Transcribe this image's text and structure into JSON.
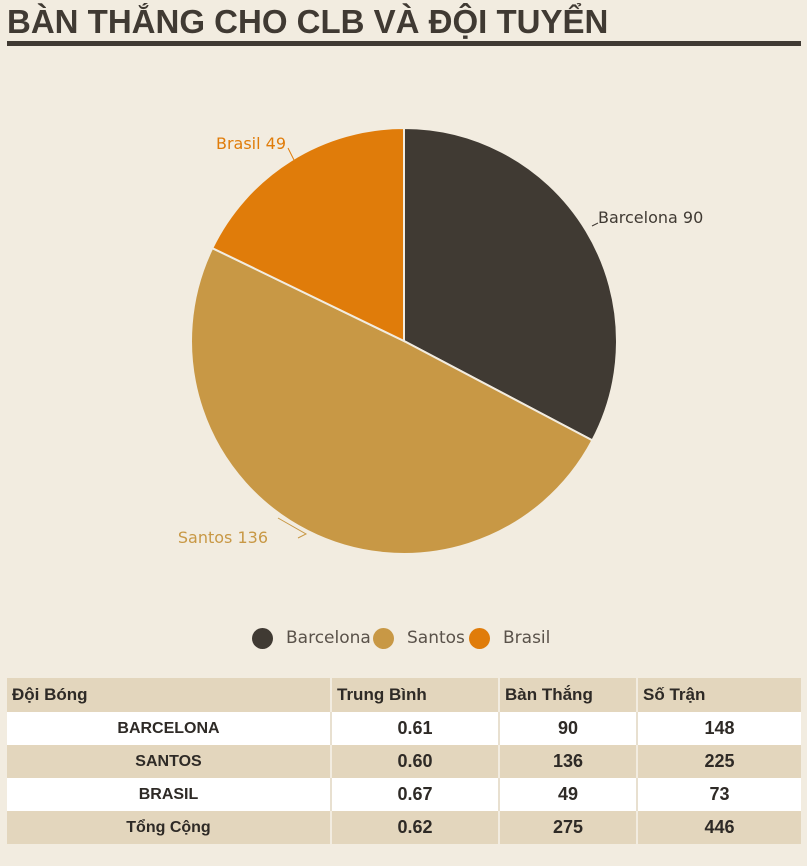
{
  "title": "BÀN THẮNG CHO CLB VÀ ĐỘI TUYỂN",
  "chart_data": {
    "type": "pie",
    "title": "BÀN THẮNG CHO CLB VÀ ĐỘI TUYỂN",
    "categories": [
      "Barcelona",
      "Santos",
      "Brasil"
    ],
    "values": [
      90,
      136,
      49
    ],
    "data_labels": [
      "Barcelona 90",
      "Santos 136",
      "Brasil 49"
    ],
    "colors": [
      "#403a33",
      "#c89845",
      "#e07c0a"
    ],
    "label_colors": [
      "#403a33",
      "#c89845",
      "#e07c0a"
    ],
    "legend_placement": "bottom",
    "start_angle_deg": 0,
    "direction": "clockwise"
  },
  "legend": {
    "items": [
      {
        "label": "Barcelona",
        "color": "#403a33"
      },
      {
        "label": "Santos",
        "color": "#c89845"
      },
      {
        "label": "Brasil",
        "color": "#e07c0a"
      }
    ]
  },
  "table": {
    "headers": [
      "Đội Bóng",
      "Trung Bình",
      "Bàn Thắng",
      "Số Trận"
    ],
    "rows": [
      {
        "team": "BARCELONA",
        "avg": "0.61",
        "goals": "90",
        "matches": "148"
      },
      {
        "team": "SANTOS",
        "avg": "0.60",
        "goals": "136",
        "matches": "225"
      },
      {
        "team": "BRASIL",
        "avg": "0.67",
        "goals": "49",
        "matches": "73"
      },
      {
        "team": "Tổng Cộng",
        "avg": "0.62",
        "goals": "275",
        "matches": "446"
      }
    ]
  }
}
